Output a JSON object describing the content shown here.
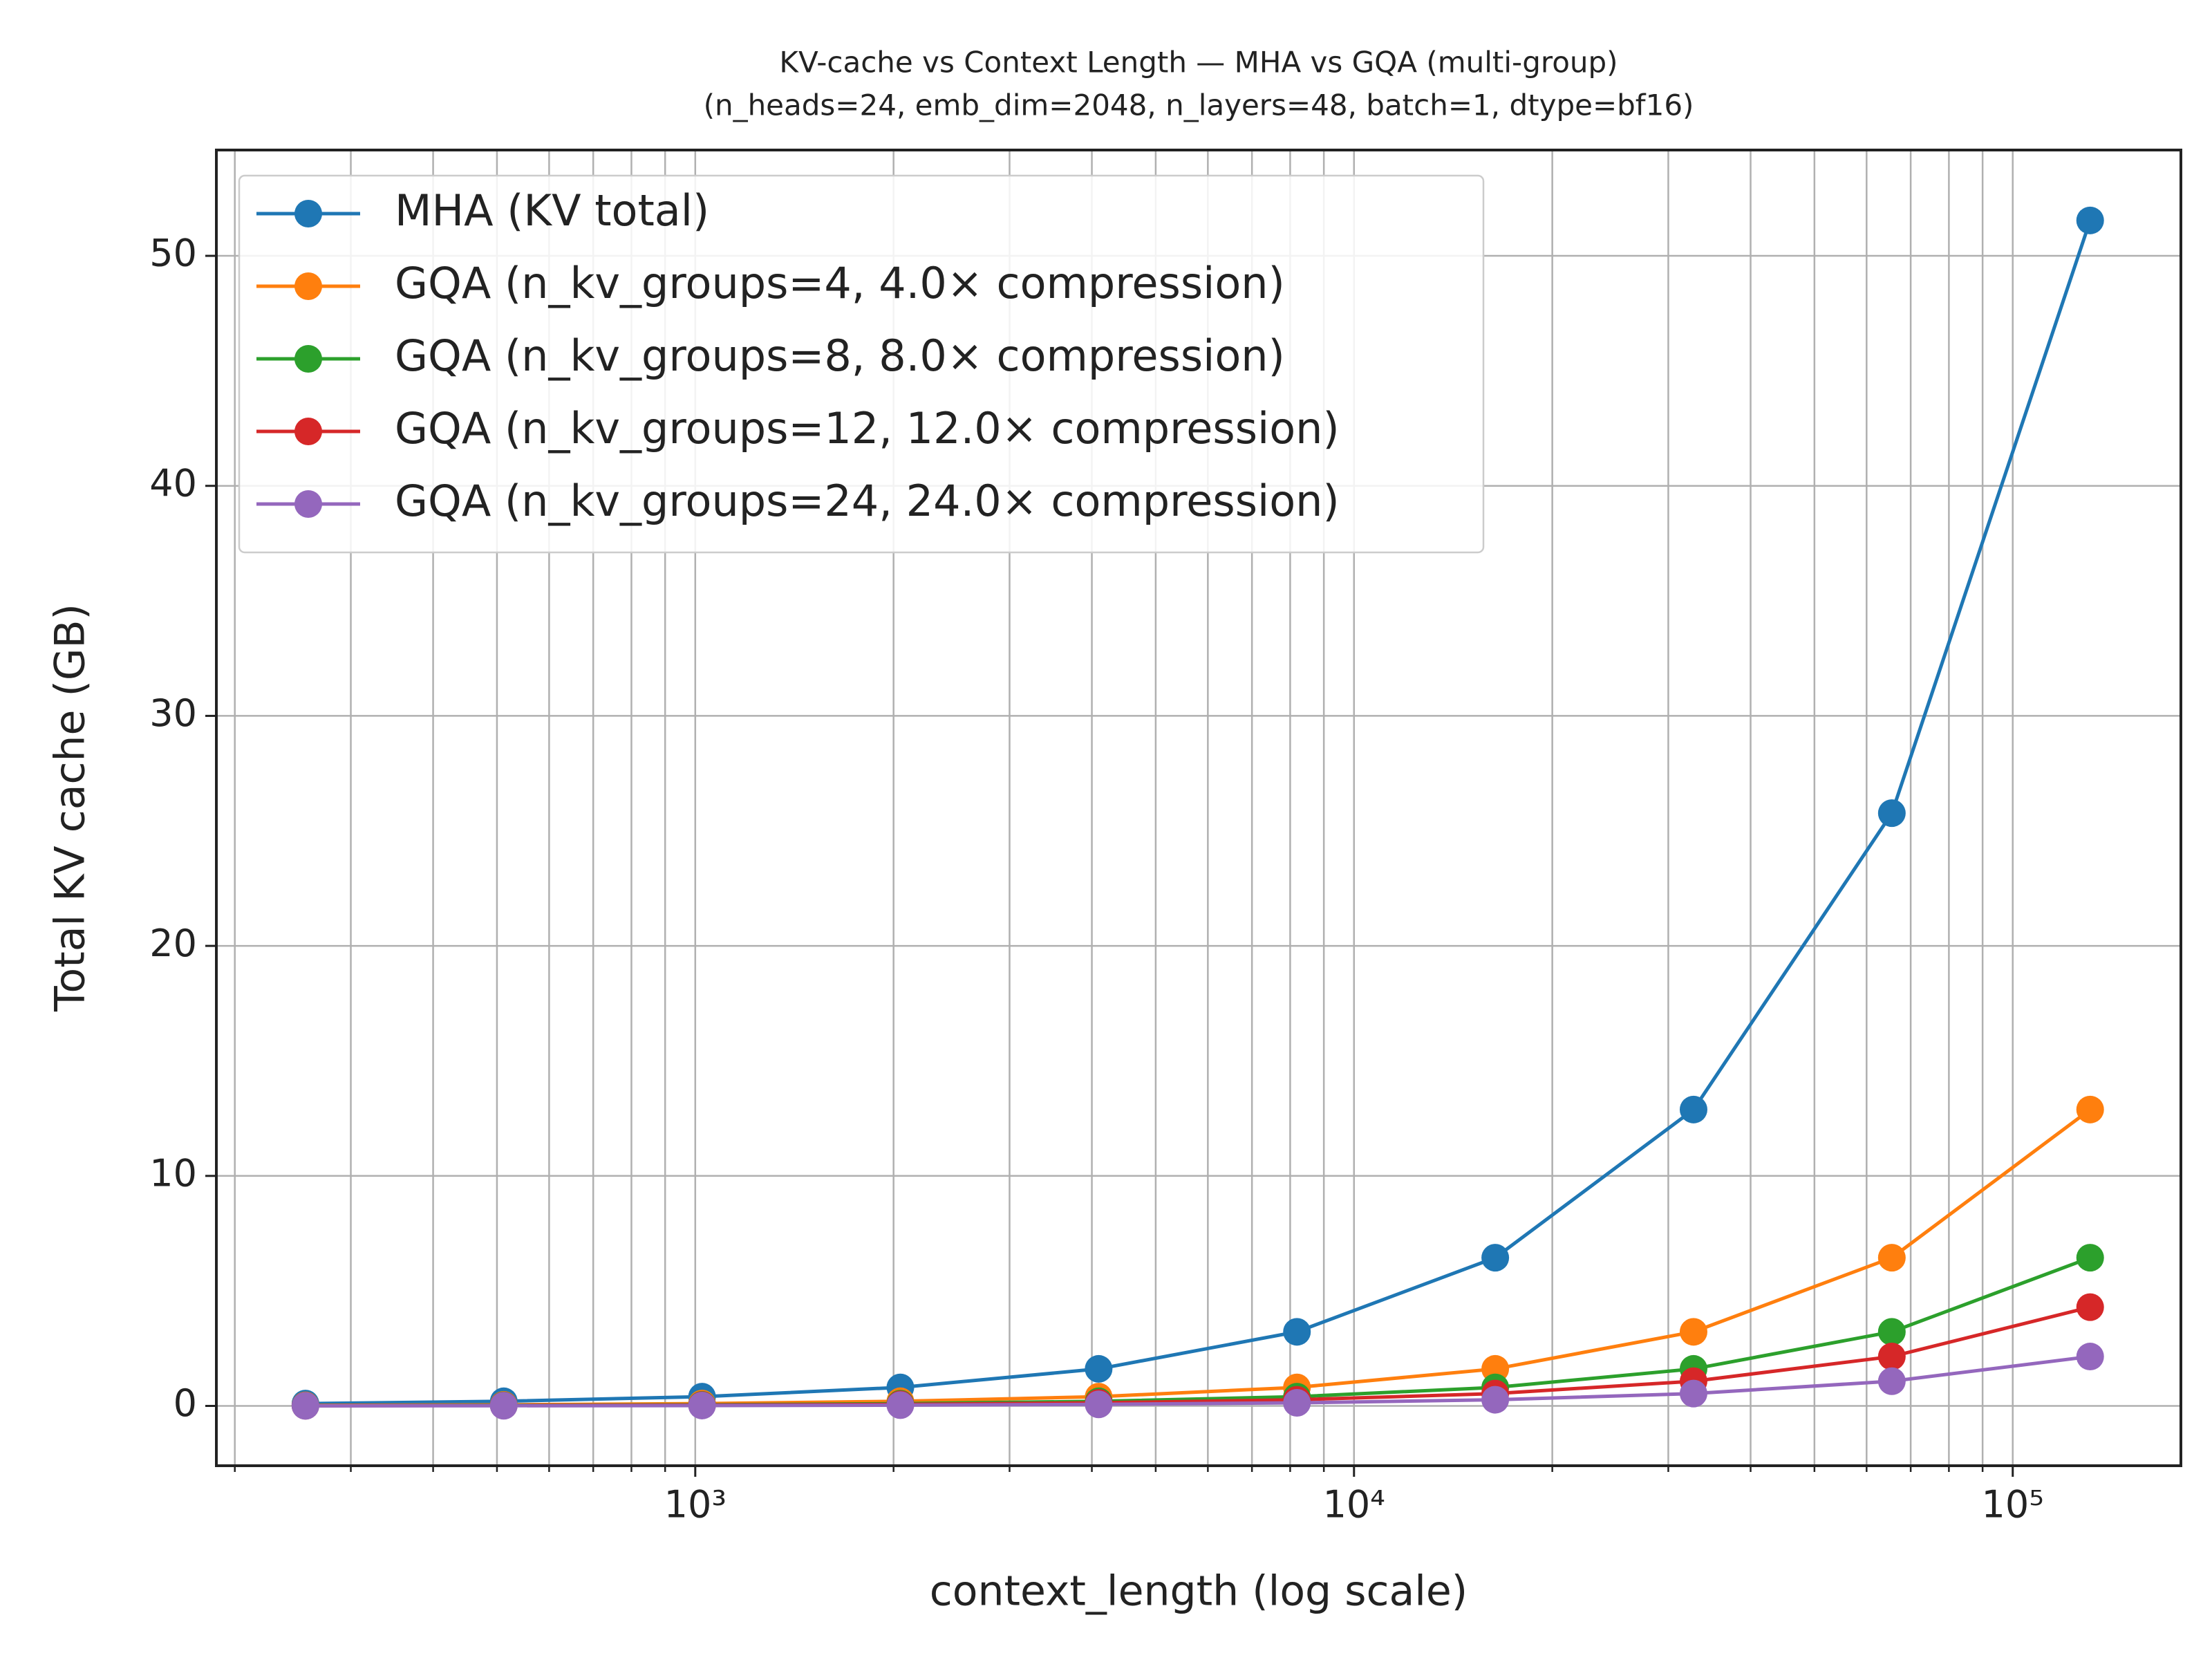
{
  "chart_data": {
    "type": "line",
    "title": "KV-cache vs Context Length — MHA vs GQA (multi-group)",
    "subtitle": "(n_heads=24, emb_dim=2048, n_layers=48, batch=1, dtype=bf16)",
    "x_label": "context_length (log scale)",
    "y_label": "Total KV cache (GB)",
    "x": [
      256,
      512,
      1024,
      2048,
      4096,
      8192,
      16384,
      32768,
      65536,
      131072
    ],
    "xscale": "log",
    "xlim": [
      187.5,
      180000
    ],
    "xticks": [
      {
        "value": 1000,
        "label": "10³"
      },
      {
        "value": 10000,
        "label": "10⁴"
      },
      {
        "value": 100000,
        "label": "10⁵"
      }
    ],
    "xminorticks": [
      200,
      300,
      400,
      500,
      600,
      700,
      800,
      900,
      2000,
      3000,
      4000,
      5000,
      6000,
      7000,
      8000,
      9000,
      20000,
      30000,
      40000,
      50000,
      60000,
      70000,
      80000,
      90000
    ],
    "ylim": [
      -2.6,
      54.6
    ],
    "yticks": [
      0,
      10,
      20,
      30,
      40,
      50
    ],
    "grid": true,
    "legend": "upper left",
    "series": [
      {
        "name": "MHA (KV total)",
        "color": "#1f77b4",
        "values": [
          0.1007,
          0.2013,
          0.4027,
          0.8053,
          1.6106,
          3.2212,
          6.4425,
          12.8849,
          25.7698,
          51.5396
        ]
      },
      {
        "name": "GQA (n_kv_groups=4, 4.0× compression)",
        "color": "#ff7f0e",
        "values": [
          0.0252,
          0.0503,
          0.1007,
          0.2013,
          0.4027,
          0.8053,
          1.6106,
          3.2212,
          6.4425,
          12.8849
        ]
      },
      {
        "name": "GQA (n_kv_groups=8, 8.0× compression)",
        "color": "#2ca02c",
        "values": [
          0.0126,
          0.0252,
          0.0503,
          0.1007,
          0.2013,
          0.4027,
          0.8053,
          1.6106,
          3.2212,
          6.4425
        ]
      },
      {
        "name": "GQA (n_kv_groups=12, 12.0× compression)",
        "color": "#d62728",
        "values": [
          0.0084,
          0.0168,
          0.0336,
          0.0671,
          0.1342,
          0.2684,
          0.5369,
          1.0737,
          2.1475,
          4.295
        ]
      },
      {
        "name": "GQA (n_kv_groups=24, 24.0× compression)",
        "color": "#9467bd",
        "values": [
          0.0042,
          0.0084,
          0.0168,
          0.0336,
          0.0671,
          0.1342,
          0.2684,
          0.5369,
          1.0737,
          2.1475
        ]
      }
    ]
  }
}
